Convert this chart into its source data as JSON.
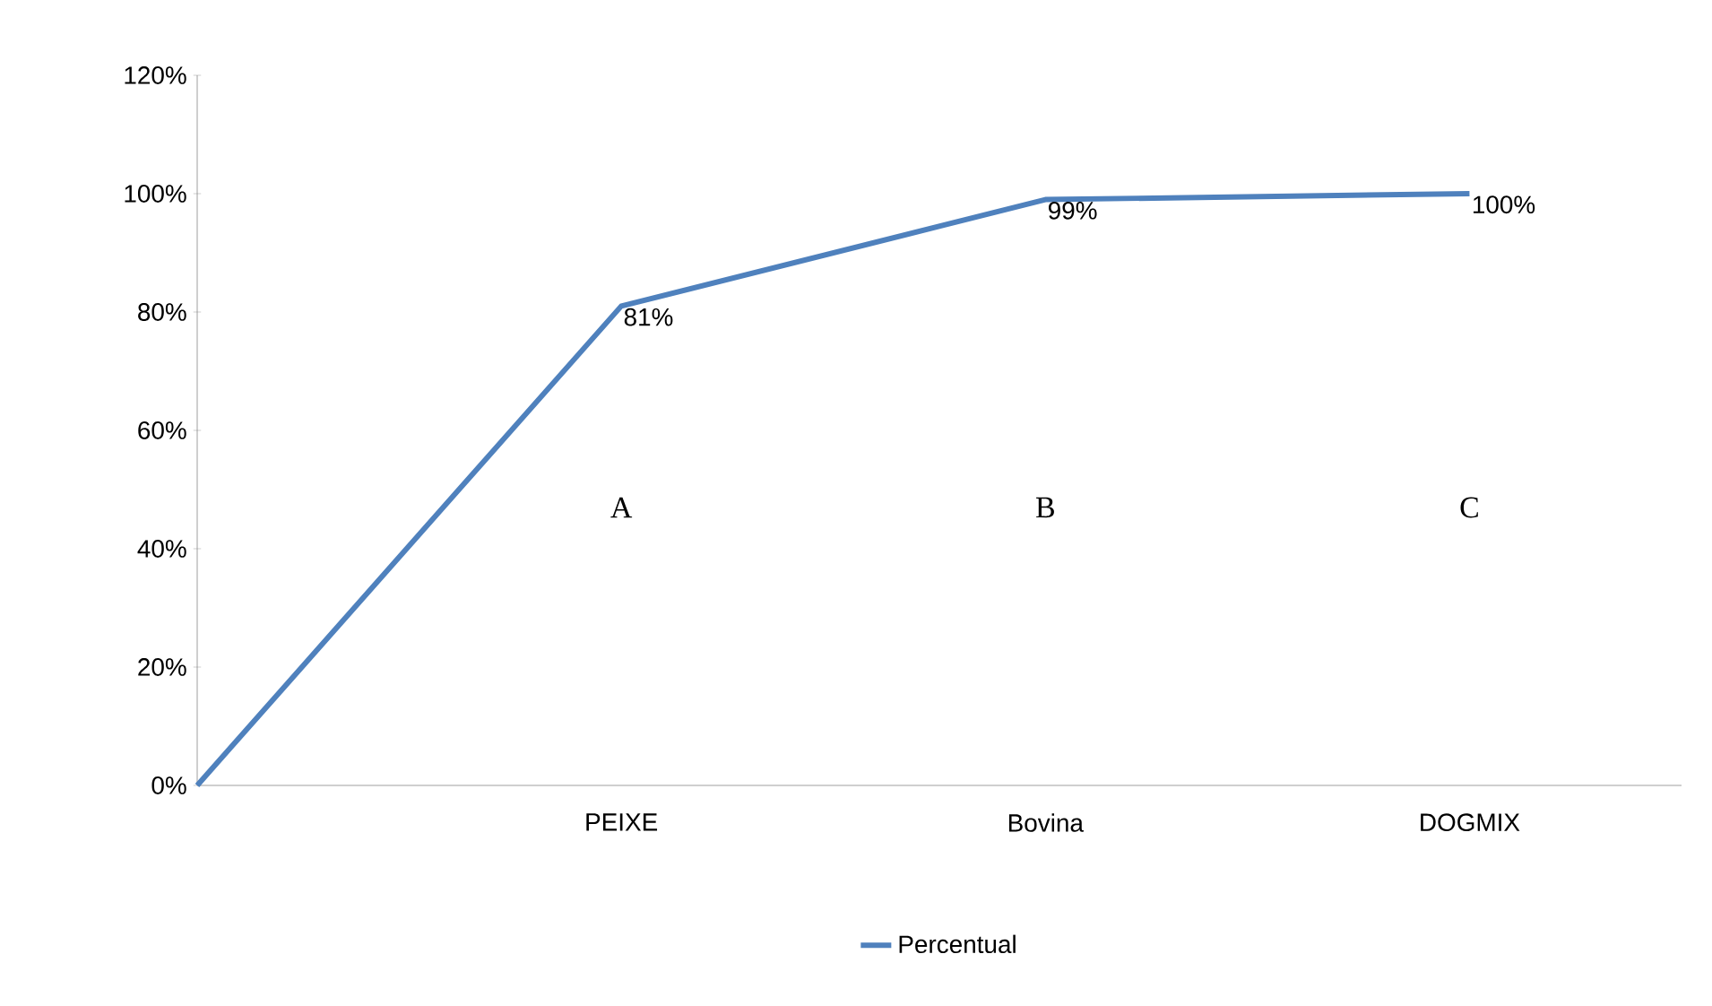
{
  "chart_data": {
    "type": "line",
    "categories": [
      null,
      "PEIXE",
      "Bovina",
      "DOGMIX"
    ],
    "series": [
      {
        "name": "Percentual",
        "color": "#4f81bd",
        "values": [
          0,
          81,
          99,
          100
        ],
        "value_labels": [
          null,
          "81%",
          "99%",
          "100%"
        ]
      }
    ],
    "ylim": [
      0,
      120
    ],
    "yticks": [
      {
        "value": 0,
        "label": "0%"
      },
      {
        "value": 20,
        "label": "20%"
      },
      {
        "value": 40,
        "label": "40%"
      },
      {
        "value": 60,
        "label": "60%"
      },
      {
        "value": 80,
        "label": "80%"
      },
      {
        "value": 100,
        "label": "100%"
      },
      {
        "value": 120,
        "label": "120%"
      }
    ],
    "annotations": [
      "A",
      "B",
      "C"
    ],
    "legend": "bottom",
    "grid": false,
    "marker": "none",
    "line_style": "solid"
  }
}
